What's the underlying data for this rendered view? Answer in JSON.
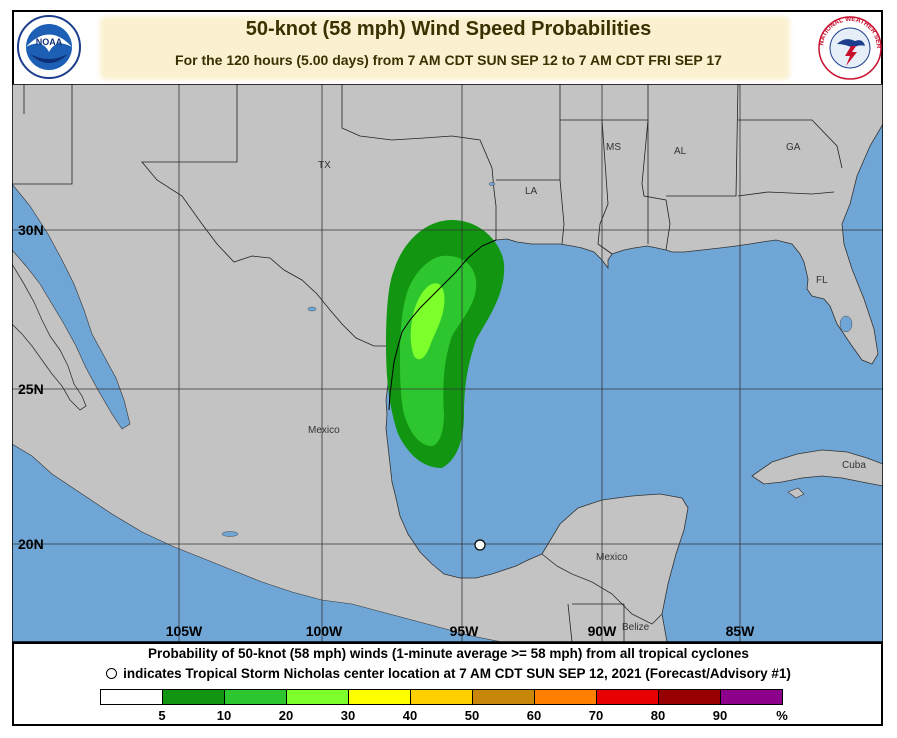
{
  "header": {
    "title": "50-knot (58 mph) Wind Speed Probabilities",
    "subtitle": "For the 120 hours (5.00 days) from 7 AM CDT SUN SEP 12 to 7 AM CDT FRI SEP 17"
  },
  "logos": {
    "left": {
      "icon": "noaa-logo-icon",
      "text": "NOAA"
    },
    "right": {
      "icon": "national-weather-service-logo-icon",
      "text": "NATIONAL WEATHER SERVICE"
    }
  },
  "map": {
    "latitude_labels": [
      "30N",
      "25N",
      "20N"
    ],
    "longitude_labels": [
      "105W",
      "100W",
      "95W",
      "90W",
      "85W"
    ],
    "region_labels": [
      "TX",
      "LA",
      "MS",
      "AL",
      "GA",
      "FL",
      "Mexico",
      "Mexico",
      "Cuba",
      "Belize"
    ],
    "colors": {
      "ocean": "#6fa6d6",
      "land": "#c3c3c3",
      "prob_5_10": "#1e9a1e",
      "prob_10_20": "#2ec62e",
      "prob_20_30": "#7cff2a"
    },
    "storm_marker": {
      "icon": "storm-center-icon"
    }
  },
  "footer": {
    "line1": "Probability of 50-knot (58 mph) winds (1-minute average >= 58 mph) from all tropical cyclones",
    "line2": "indicates Tropical Storm Nicholas center location at 7 AM CDT SUN SEP 12, 2021 (Forecast/Advisory #1)",
    "legend_colors": [
      "#ffffff",
      "#129612",
      "#2ec62e",
      "#7cff2a",
      "#ffff00",
      "#ffd000",
      "#c8860a",
      "#ff7f00",
      "#e60000",
      "#960000",
      "#8c008c"
    ],
    "legend_labels": [
      "5",
      "10",
      "20",
      "30",
      "40",
      "50",
      "60",
      "70",
      "80",
      "90",
      "%"
    ]
  }
}
